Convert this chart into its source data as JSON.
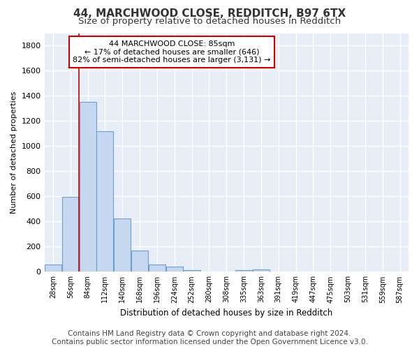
{
  "title_line1": "44, MARCHWOOD CLOSE, REDDITCH, B97 6TX",
  "title_line2": "Size of property relative to detached houses in Redditch",
  "xlabel": "Distribution of detached houses by size in Redditch",
  "ylabel": "Number of detached properties",
  "bar_labels": [
    "28sqm",
    "56sqm",
    "84sqm",
    "112sqm",
    "140sqm",
    "168sqm",
    "196sqm",
    "224sqm",
    "252sqm",
    "280sqm",
    "308sqm",
    "335sqm",
    "363sqm",
    "391sqm",
    "419sqm",
    "447sqm",
    "475sqm",
    "503sqm",
    "531sqm",
    "559sqm",
    "587sqm"
  ],
  "bar_values": [
    55,
    595,
    1350,
    1120,
    425,
    170,
    60,
    40,
    15,
    0,
    0,
    15,
    20,
    0,
    0,
    0,
    0,
    0,
    0,
    0,
    0
  ],
  "bar_color": "#c5d8f0",
  "bar_edge_color": "#6a9fd0",
  "ylim": [
    0,
    1900
  ],
  "yticks": [
    0,
    200,
    400,
    600,
    800,
    1000,
    1200,
    1400,
    1600,
    1800
  ],
  "property_line_x": 2,
  "property_line_color": "#cc0000",
  "annotation_line1": "44 MARCHWOOD CLOSE: 85sqm",
  "annotation_line2": "← 17% of detached houses are smaller (646)",
  "annotation_line3": "82% of semi-detached houses are larger (3,131) →",
  "annotation_box_color": "#cc0000",
  "annotation_bg": "#ffffff",
  "footer_line1": "Contains HM Land Registry data © Crown copyright and database right 2024.",
  "footer_line2": "Contains public sector information licensed under the Open Government Licence v3.0.",
  "background_color": "#e8eef8",
  "grid_color": "#ffffff",
  "title_fontsize": 11,
  "subtitle_fontsize": 9.5,
  "footer_fontsize": 7.5
}
